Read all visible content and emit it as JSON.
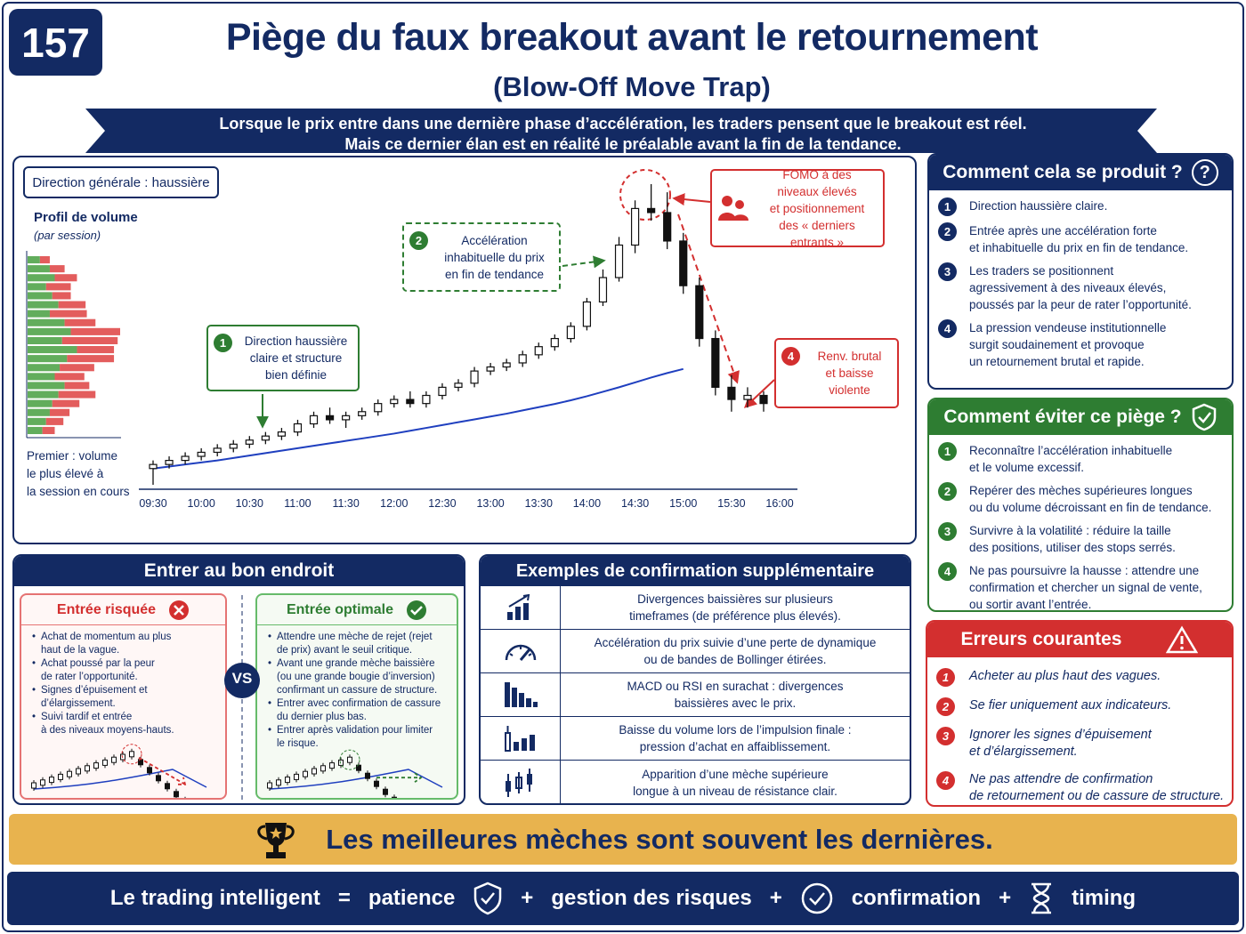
{
  "badge": "157",
  "header": {
    "title": "Piège du faux breakout avant le retournement",
    "subtitle": "(Blow-Off Move Trap)",
    "banner": [
      "Lorsque le prix entre dans une dernière phase d’accélération, les traders pensent que le breakout est réel.",
      "Mais ce dernier élan est en réalité le préalable avant la fin de la tendance."
    ]
  },
  "chart_data": {
    "type": "candlestick",
    "direction_label": "Direction générale : haussière",
    "xticks": [
      "09:30",
      "10:00",
      "10:30",
      "11:00",
      "11:30",
      "12:00",
      "12:30",
      "13:00",
      "13:30",
      "14:00",
      "14:30",
      "15:00",
      "15:30",
      "16:00"
    ],
    "candles": {
      "open": [
        100,
        101,
        102,
        103,
        104,
        105,
        106,
        107,
        108,
        109,
        111,
        113,
        112,
        113,
        114,
        116,
        117,
        116,
        118,
        120,
        121,
        124,
        125,
        126,
        128,
        130,
        132,
        135,
        141,
        147,
        155,
        164,
        163,
        156,
        145,
        132,
        120,
        117,
        118
      ],
      "high": [
        102,
        103,
        104,
        105,
        106,
        107,
        108,
        109,
        110,
        112,
        114,
        115,
        114,
        115,
        117,
        118,
        119,
        119,
        121,
        122,
        125,
        126,
        127,
        129,
        131,
        133,
        136,
        142,
        149,
        157,
        166,
        170,
        168,
        158,
        147,
        134,
        123,
        120,
        119
      ],
      "low": [
        96,
        100,
        101,
        102,
        103,
        104,
        105,
        106,
        107,
        108,
        110,
        111,
        110,
        112,
        113,
        115,
        115,
        115,
        117,
        119,
        120,
        123,
        124,
        125,
        127,
        129,
        131,
        134,
        140,
        146,
        153,
        161,
        154,
        143,
        130,
        118,
        114,
        115,
        114
      ],
      "close": [
        101,
        102,
        103,
        104,
        105,
        106,
        107,
        108,
        109,
        111,
        113,
        112,
        113,
        114,
        116,
        117,
        116,
        118,
        120,
        121,
        124,
        125,
        126,
        128,
        130,
        132,
        135,
        141,
        147,
        155,
        164,
        163,
        156,
        145,
        132,
        120,
        117,
        118,
        116
      ]
    },
    "ma": [
      100,
      100.5,
      101,
      101.5,
      102,
      102.6,
      103.2,
      103.8,
      104.4,
      105,
      105.6,
      106.2,
      106.8,
      107.4,
      108,
      108.6,
      109.3,
      110,
      110.7,
      111.4,
      112.1,
      112.8,
      113.5,
      114.3,
      115.1,
      115.9,
      116.8,
      117.8,
      118.9,
      120,
      121.2,
      122.4,
      123.5,
      124.5,
      null,
      null,
      null,
      null,
      null
    ],
    "volume_profile": {
      "title": "Profil de volume",
      "subtitle": "(par session)",
      "buy": [
        10,
        18,
        22,
        15,
        20,
        25,
        18,
        30,
        35,
        28,
        40,
        32,
        26,
        22,
        30,
        25,
        20,
        18,
        15,
        12
      ],
      "sell": [
        8,
        12,
        18,
        20,
        15,
        22,
        30,
        25,
        40,
        45,
        30,
        38,
        28,
        24,
        20,
        30,
        22,
        16,
        14,
        10
      ],
      "note": [
        "Premier : volume",
        "le plus élevé à",
        "la session en cours"
      ]
    },
    "callouts": [
      {
        "n": "1",
        "lines": [
          "Direction haussière",
          "claire et structure",
          "bien définie"
        ]
      },
      {
        "n": "2",
        "lines": [
          "Accélération",
          "inhabituelle du prix",
          "en fin de tendance"
        ]
      },
      {
        "lines": [
          "FOMO à des",
          "niveaux élevés",
          "et positionnement",
          "des « derniers entrants »"
        ]
      },
      {
        "n": "4",
        "lines": [
          "Renv. brutal",
          "et baisse",
          "violente"
        ]
      }
    ]
  },
  "how": {
    "title": "Comment cela se produit ?",
    "icon": "?",
    "items": [
      {
        "n": "1",
        "lines": [
          "Direction haussière claire."
        ]
      },
      {
        "n": "2",
        "lines": [
          "Entrée après une accélération forte",
          "et inhabituelle du prix en fin de tendance."
        ]
      },
      {
        "n": "3",
        "lines": [
          "Les traders se positionnent",
          "agressivement à des niveaux élevés,",
          "poussés par la peur de rater l’opportunité."
        ]
      },
      {
        "n": "4",
        "lines": [
          "La pression vendeuse institutionnelle",
          "surgit soudainement et provoque",
          "un retournement brutal et rapide."
        ]
      }
    ]
  },
  "avoid": {
    "title": "Comment éviter ce piège ?",
    "items": [
      {
        "n": "1",
        "lines": [
          "Reconnaître l’accélération inhabituelle",
          "et le volume excessif."
        ]
      },
      {
        "n": "2",
        "lines": [
          "Repérer des mèches supérieures longues",
          "ou du volume décroissant en fin de tendance."
        ]
      },
      {
        "n": "3",
        "lines": [
          "Survivre à la volatilité : réduire la taille",
          "des positions, utiliser des stops serrés."
        ]
      },
      {
        "n": "4",
        "lines": [
          "Ne pas poursuivre la hausse : attendre une",
          "confirmation et chercher un signal de vente,",
          "ou sortir avant l’entrée."
        ]
      }
    ]
  },
  "errors": {
    "title": "Erreurs courantes",
    "items": [
      {
        "n": "1",
        "lines": [
          "Acheter au plus haut des vagues."
        ]
      },
      {
        "n": "2",
        "lines": [
          "Se fier uniquement aux indicateurs."
        ]
      },
      {
        "n": "3",
        "lines": [
          "Ignorer les signes d’épuisement",
          "et d’élargissement."
        ]
      },
      {
        "n": "4",
        "lines": [
          "Ne pas attendre de confirmation",
          "de retournement ou de cassure de structure."
        ]
      }
    ]
  },
  "entry": {
    "title": "Entrer au bon endroit",
    "vs": "VS",
    "risky": {
      "title": "Entrée risquée",
      "bullets": [
        [
          "Achat de momentum au plus",
          "haut de la vague."
        ],
        [
          "Achat poussé par la peur",
          "de rater l’opportunité."
        ],
        [
          "Signes d’épuisement et",
          "d’élargissement."
        ],
        [
          "Suivi tardif et entrée",
          "à des niveaux moyens-hauts."
        ]
      ]
    },
    "optimal": {
      "title": "Entrée optimale",
      "bullets": [
        [
          "Attendre une mèche de rejet (rejet",
          "de prix) avant le seuil critique."
        ],
        [
          "Avant une grande mèche baissière",
          "(ou une grande bougie d’inversion)",
          "confirmant un cassure de structure."
        ],
        [
          "Entrer avec confirmation de cassure",
          "du dernier plus bas."
        ],
        [
          "Entrer après validation pour limiter",
          "le risque."
        ]
      ]
    }
  },
  "examples": {
    "title": "Exemples de confirmation supplémentaire",
    "rows": [
      [
        "Divergences baissières sur plusieurs",
        "timeframes (de préférence plus élevés)."
      ],
      [
        "Accélération du prix suivie d’une perte de dynamique",
        "ou de bandes de Bollinger étirées."
      ],
      [
        "MACD ou RSI en surachat : divergences",
        "baissières avec le prix."
      ],
      [
        "Baisse du volume lors de l’impulsion finale :",
        "pression d’achat en affaiblissement."
      ],
      [
        "Apparition d’une mèche supérieure",
        "longue à un niveau de résistance clair."
      ]
    ]
  },
  "quote": "Les meilleures mèches sont souvent les dernières.",
  "footer": {
    "items": [
      "Le trading intelligent",
      "=",
      "patience",
      "+",
      "gestion des risques",
      "+",
      "confirmation",
      "+",
      "timing"
    ]
  }
}
